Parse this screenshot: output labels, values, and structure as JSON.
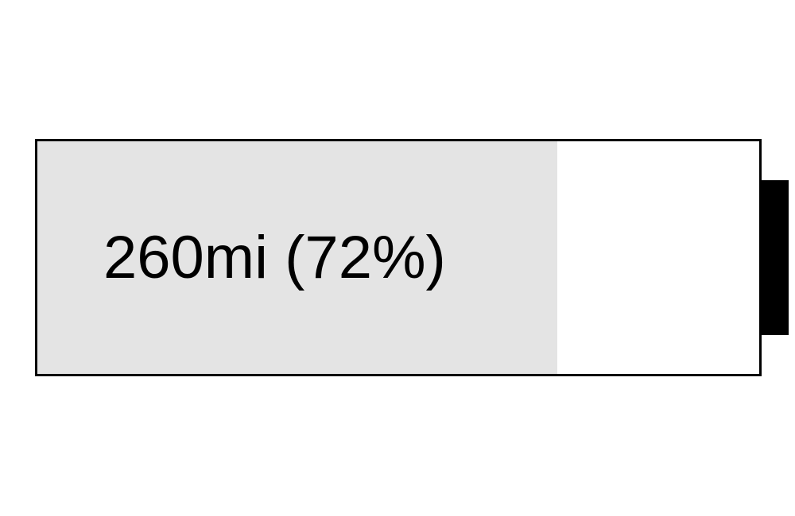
{
  "battery": {
    "label": "260mi (72%)",
    "range": "260mi",
    "charge_fraction": 0.72,
    "colors": {
      "fill": "#e4e4e4",
      "empty": "#ffffff",
      "outline": "#000000",
      "text": "#000000"
    }
  }
}
